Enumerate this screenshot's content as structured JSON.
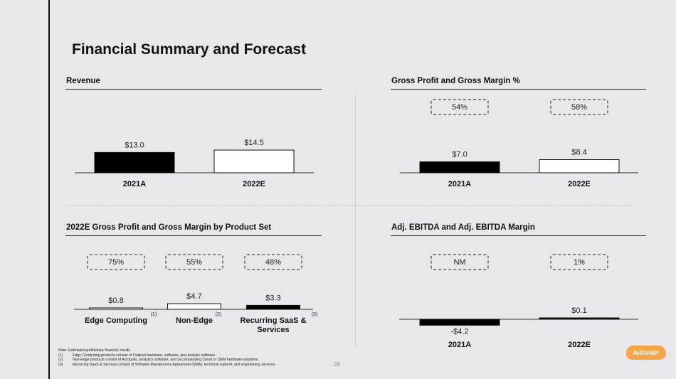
{
  "title": "Financial Summary and Forecast",
  "page_number": "28",
  "logo_text": "AIRSHIP",
  "footnotes": {
    "note": "Note: Estimated preliminary financial results",
    "items": [
      {
        "num": "(1)",
        "text": "Edge Computing products consist of Outpost hardware, software, and analytic software."
      },
      {
        "num": "(2)",
        "text": "Non-Edge products consist of Acropolis, analytics software, and accompanying Cloud or OEM hardware solutions."
      },
      {
        "num": "(3)",
        "text": "Recurring SaaS & Services consist of Software Maintenance Agreement (SMA), technical support, and engineering services."
      }
    ]
  },
  "colors": {
    "filled": "#000000",
    "outline": "#ffffff",
    "background": "#e8e8ec"
  },
  "chart_data": [
    {
      "type": "bar",
      "title": "Revenue",
      "categories": [
        "2021A",
        "2022E"
      ],
      "values": [
        13.0,
        14.5
      ],
      "value_labels": [
        "$13.0",
        "$14.5"
      ],
      "fills": [
        "filled",
        "outline"
      ],
      "margin_labels": []
    },
    {
      "type": "bar",
      "title": "Gross Profit and Gross Margin %",
      "categories": [
        "2021A",
        "2022E"
      ],
      "values": [
        7.0,
        8.4
      ],
      "value_labels": [
        "$7.0",
        "$8.4"
      ],
      "fills": [
        "filled",
        "outline"
      ],
      "margin_labels": [
        "54%",
        "58%"
      ]
    },
    {
      "type": "bar",
      "title": "2022E Gross Profit and Gross Margin by Product Set",
      "categories": [
        "Edge Computing",
        "Non-Edge",
        "Recurring SaaS & Services"
      ],
      "category_lines": [
        [
          "Edge Computing"
        ],
        [
          "Non-Edge"
        ],
        [
          "Recurring SaaS &",
          "Services"
        ]
      ],
      "footnote_marks": [
        "(1)",
        "(2)",
        "(3)"
      ],
      "values": [
        0.8,
        4.7,
        3.3
      ],
      "value_labels": [
        "$0.8",
        "$4.7",
        "$3.3"
      ],
      "fills": [
        "outline",
        "outline",
        "filled"
      ],
      "margin_labels": [
        "75%",
        "55%",
        "48%"
      ]
    },
    {
      "type": "bar",
      "title": "Adj. EBITDA and Adj. EBITDA Margin",
      "categories": [
        "2021A",
        "2022E"
      ],
      "values": [
        -4.2,
        0.1
      ],
      "value_labels": [
        "-$4.2",
        "$0.1"
      ],
      "fills": [
        "filled",
        "filled"
      ],
      "margin_labels": [
        "NM",
        "1%"
      ]
    }
  ]
}
